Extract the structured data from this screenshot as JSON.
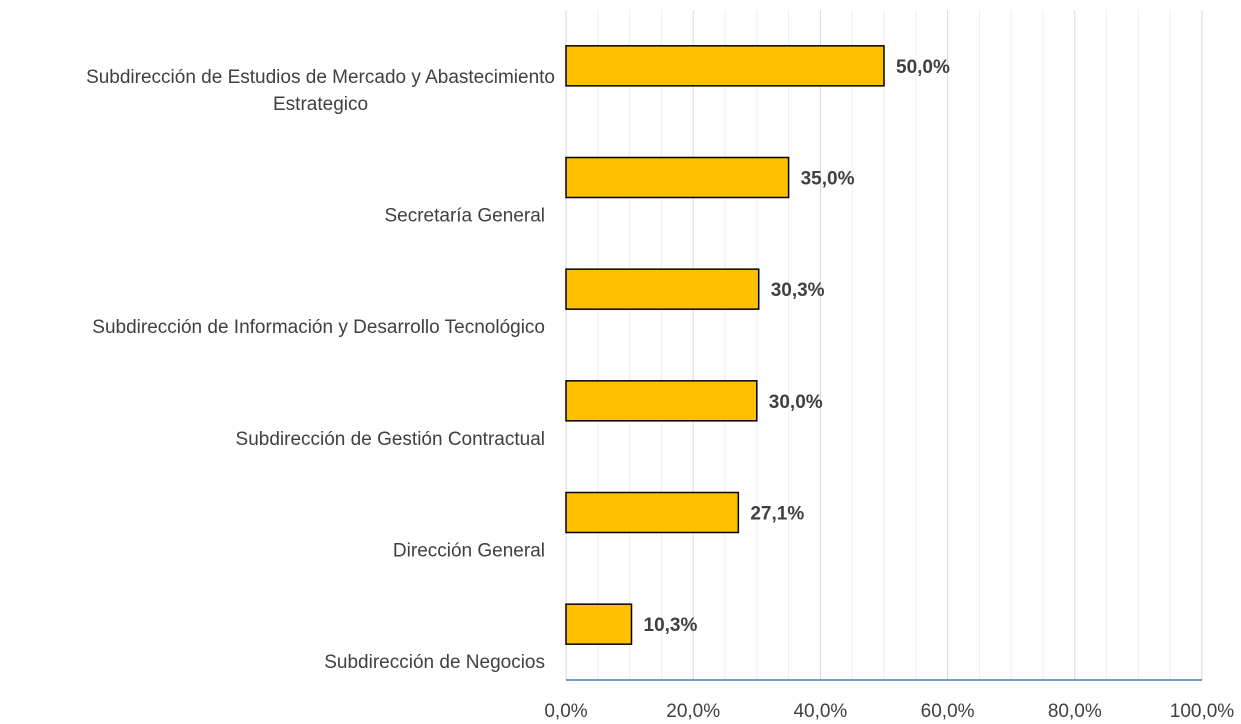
{
  "chart_data": {
    "type": "hbar",
    "categories": [
      "Subdirección de Estudios de Mercado y Abastecimiento Estrategico",
      "Secretaría General",
      "Subdirección de Información y Desarrollo Tecnológico",
      "Subdirección de Gestión Contractual",
      "Dirección General",
      "Subdirección de Negocios"
    ],
    "values": [
      50.0,
      35.0,
      30.3,
      30.0,
      27.1,
      10.3
    ],
    "value_labels": [
      "50,0%",
      "35,0%",
      "30,3%",
      "30,0%",
      "27,1%",
      "10,3%"
    ],
    "color": "#ffc000",
    "xlim": [
      0,
      100
    ],
    "xticks": [
      {
        "value": 0,
        "label": "0,0%"
      },
      {
        "value": 20,
        "label": "20,0%"
      },
      {
        "value": 40,
        "label": "40,0%"
      },
      {
        "value": 60,
        "label": "60,0%"
      },
      {
        "value": 80,
        "label": "80,0%"
      },
      {
        "value": 100,
        "label": "100,0%"
      }
    ],
    "xminorticks": [
      5,
      10,
      15,
      25,
      30,
      35,
      45,
      50,
      55,
      65,
      70,
      75,
      85,
      90,
      95
    ],
    "grid": true
  }
}
